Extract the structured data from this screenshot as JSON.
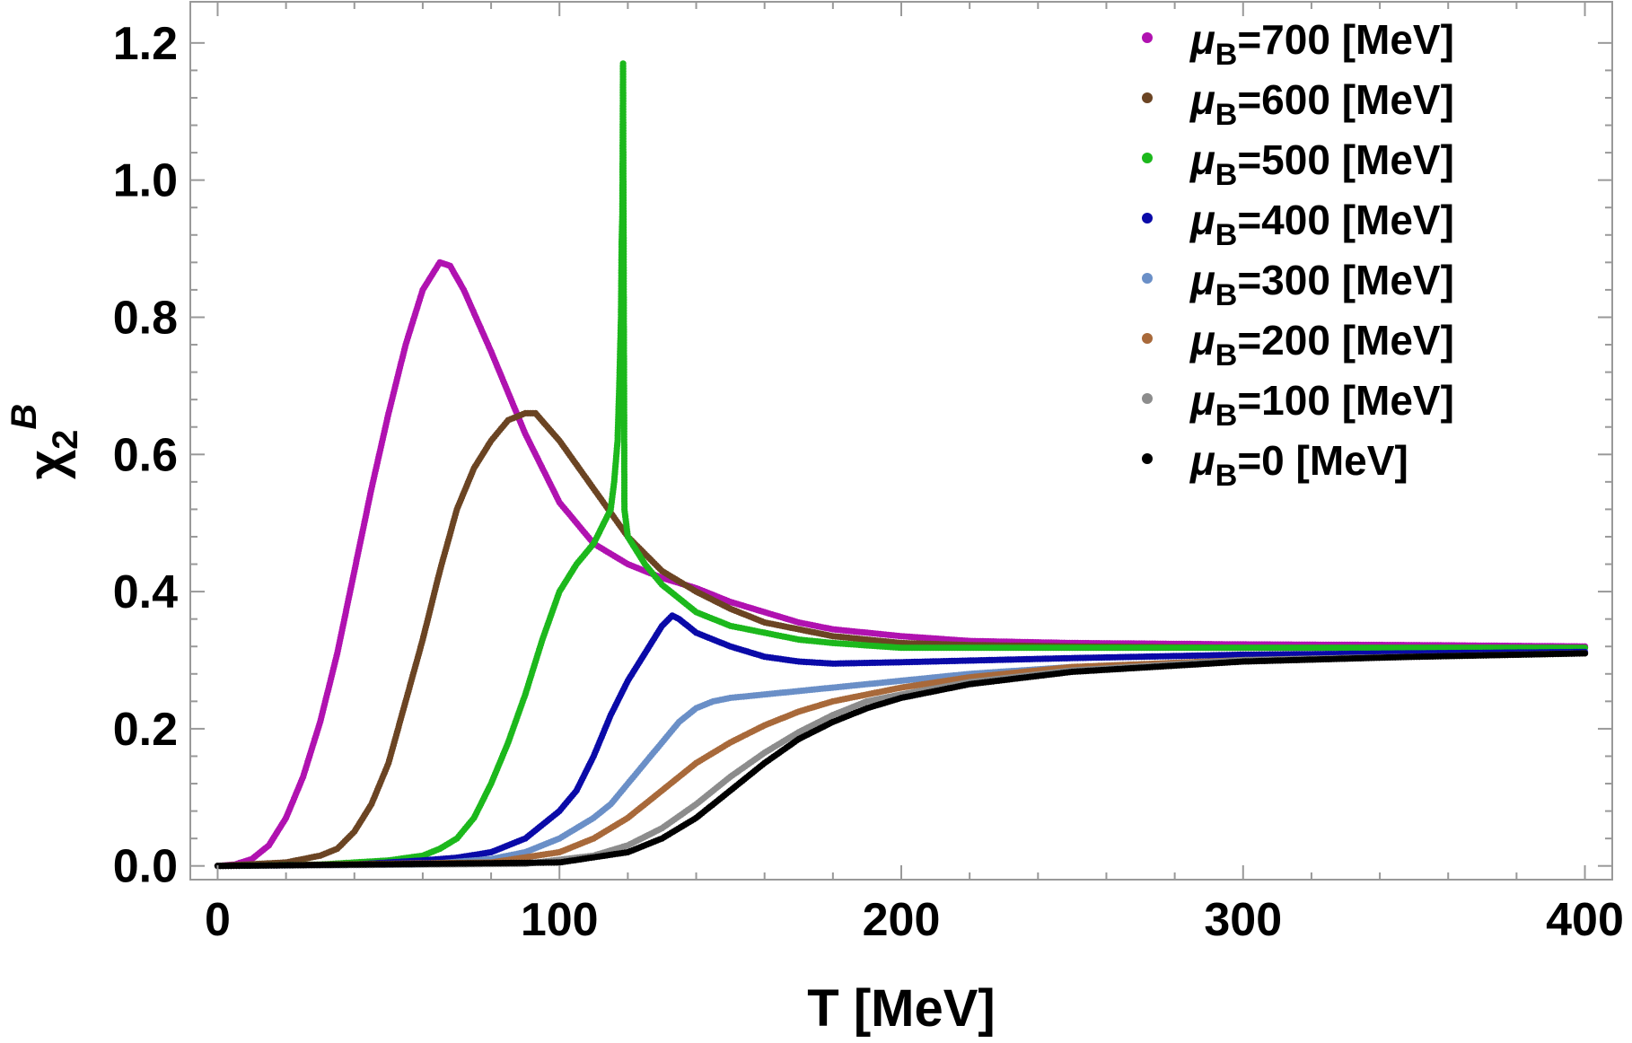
{
  "chart_data": {
    "type": "scatter",
    "xlabel": "T [MeV]",
    "ylabel": {
      "main": "χ",
      "sub": "2",
      "sup": "B"
    },
    "xlim": [
      -8,
      408
    ],
    "ylim": [
      -0.02,
      1.26
    ],
    "xticks": [
      0,
      100,
      200,
      300,
      400
    ],
    "yticks": [
      0.0,
      0.2,
      0.4,
      0.6,
      0.8,
      1.0,
      1.2
    ],
    "ytick_labels": [
      "0.0",
      "0.2",
      "0.4",
      "0.6",
      "0.8",
      "1.0",
      "1.2"
    ],
    "grid": false,
    "legend_position": "top-right",
    "series": [
      {
        "name": "μB=700 [MeV]",
        "name_main": "μ",
        "name_sub": "B",
        "name_rest": "=700 [MeV]",
        "color": "#b012b0",
        "points": [
          [
            0,
            0
          ],
          [
            5,
            0.002
          ],
          [
            10,
            0.01
          ],
          [
            15,
            0.03
          ],
          [
            20,
            0.07
          ],
          [
            25,
            0.13
          ],
          [
            30,
            0.21
          ],
          [
            35,
            0.31
          ],
          [
            40,
            0.43
          ],
          [
            45,
            0.55
          ],
          [
            50,
            0.66
          ],
          [
            55,
            0.76
          ],
          [
            60,
            0.84
          ],
          [
            65,
            0.88
          ],
          [
            68,
            0.875
          ],
          [
            72,
            0.84
          ],
          [
            80,
            0.75
          ],
          [
            90,
            0.63
          ],
          [
            100,
            0.53
          ],
          [
            110,
            0.47
          ],
          [
            120,
            0.44
          ],
          [
            130,
            0.42
          ],
          [
            140,
            0.405
          ],
          [
            150,
            0.385
          ],
          [
            160,
            0.37
          ],
          [
            170,
            0.355
          ],
          [
            180,
            0.345
          ],
          [
            200,
            0.335
          ],
          [
            220,
            0.328
          ],
          [
            250,
            0.325
          ],
          [
            300,
            0.323
          ],
          [
            350,
            0.322
          ],
          [
            400,
            0.32
          ]
        ]
      },
      {
        "name": "μB=600 [MeV]",
        "name_main": "μ",
        "name_sub": "B",
        "name_rest": "=600 [MeV]",
        "color": "#6b4423",
        "points": [
          [
            0,
            0
          ],
          [
            20,
            0.005
          ],
          [
            30,
            0.015
          ],
          [
            35,
            0.025
          ],
          [
            40,
            0.05
          ],
          [
            45,
            0.09
          ],
          [
            50,
            0.15
          ],
          [
            55,
            0.24
          ],
          [
            60,
            0.33
          ],
          [
            65,
            0.43
          ],
          [
            70,
            0.52
          ],
          [
            75,
            0.58
          ],
          [
            80,
            0.62
          ],
          [
            85,
            0.65
          ],
          [
            90,
            0.66
          ],
          [
            93,
            0.66
          ],
          [
            100,
            0.62
          ],
          [
            110,
            0.55
          ],
          [
            120,
            0.48
          ],
          [
            130,
            0.43
          ],
          [
            140,
            0.4
          ],
          [
            150,
            0.375
          ],
          [
            160,
            0.355
          ],
          [
            170,
            0.345
          ],
          [
            180,
            0.335
          ],
          [
            200,
            0.325
          ],
          [
            220,
            0.322
          ],
          [
            250,
            0.32
          ],
          [
            300,
            0.318
          ],
          [
            350,
            0.318
          ],
          [
            400,
            0.318
          ]
        ]
      },
      {
        "name": "μB=500 [MeV]",
        "name_main": "μ",
        "name_sub": "B",
        "name_rest": "=500 [MeV]",
        "color": "#1cb81c",
        "points": [
          [
            0,
            0
          ],
          [
            30,
            0.002
          ],
          [
            50,
            0.008
          ],
          [
            60,
            0.015
          ],
          [
            65,
            0.025
          ],
          [
            70,
            0.04
          ],
          [
            75,
            0.07
          ],
          [
            80,
            0.12
          ],
          [
            85,
            0.18
          ],
          [
            90,
            0.25
          ],
          [
            95,
            0.33
          ],
          [
            100,
            0.4
          ],
          [
            105,
            0.44
          ],
          [
            110,
            0.47
          ],
          [
            115,
            0.52
          ],
          [
            116,
            0.56
          ],
          [
            117,
            0.62
          ],
          [
            117.5,
            0.7
          ],
          [
            118,
            0.8
          ],
          [
            118.2,
            0.91
          ],
          [
            118.4,
            0.95
          ],
          [
            118.6,
            1.17
          ],
          [
            119,
            0.52
          ],
          [
            120,
            0.48
          ],
          [
            125,
            0.44
          ],
          [
            130,
            0.41
          ],
          [
            140,
            0.37
          ],
          [
            150,
            0.35
          ],
          [
            160,
            0.34
          ],
          [
            170,
            0.33
          ],
          [
            180,
            0.325
          ],
          [
            200,
            0.318
          ],
          [
            250,
            0.318
          ],
          [
            300,
            0.318
          ],
          [
            400,
            0.318
          ]
        ]
      },
      {
        "name": "μB=400 [MeV]",
        "name_main": "μ",
        "name_sub": "B",
        "name_rest": "=400 [MeV]",
        "color": "#0a0aa8",
        "points": [
          [
            0,
            0
          ],
          [
            40,
            0.002
          ],
          [
            60,
            0.008
          ],
          [
            70,
            0.012
          ],
          [
            80,
            0.02
          ],
          [
            90,
            0.04
          ],
          [
            100,
            0.08
          ],
          [
            105,
            0.11
          ],
          [
            110,
            0.16
          ],
          [
            115,
            0.22
          ],
          [
            120,
            0.27
          ],
          [
            125,
            0.31
          ],
          [
            130,
            0.35
          ],
          [
            133,
            0.365
          ],
          [
            135,
            0.36
          ],
          [
            140,
            0.34
          ],
          [
            150,
            0.32
          ],
          [
            160,
            0.305
          ],
          [
            170,
            0.298
          ],
          [
            180,
            0.295
          ],
          [
            200,
            0.297
          ],
          [
            250,
            0.303
          ],
          [
            300,
            0.308
          ],
          [
            350,
            0.31
          ],
          [
            400,
            0.312
          ]
        ]
      },
      {
        "name": "μB=300 [MeV]",
        "name_main": "μ",
        "name_sub": "B",
        "name_rest": "=300 [MeV]",
        "color": "#6a8fc7",
        "points": [
          [
            0,
            0
          ],
          [
            60,
            0.002
          ],
          [
            80,
            0.01
          ],
          [
            90,
            0.02
          ],
          [
            100,
            0.04
          ],
          [
            110,
            0.07
          ],
          [
            115,
            0.09
          ],
          [
            120,
            0.12
          ],
          [
            125,
            0.15
          ],
          [
            130,
            0.18
          ],
          [
            135,
            0.21
          ],
          [
            140,
            0.23
          ],
          [
            145,
            0.24
          ],
          [
            150,
            0.245
          ],
          [
            170,
            0.255
          ],
          [
            190,
            0.265
          ],
          [
            200,
            0.27
          ],
          [
            220,
            0.28
          ],
          [
            250,
            0.29
          ],
          [
            300,
            0.3
          ],
          [
            350,
            0.305
          ],
          [
            400,
            0.31
          ]
        ]
      },
      {
        "name": "μB=200 [MeV]",
        "name_main": "μ",
        "name_sub": "B",
        "name_rest": "=200 [MeV]",
        "color": "#a8693a",
        "points": [
          [
            0,
            0
          ],
          [
            80,
            0.005
          ],
          [
            100,
            0.02
          ],
          [
            110,
            0.04
          ],
          [
            120,
            0.07
          ],
          [
            130,
            0.11
          ],
          [
            140,
            0.15
          ],
          [
            150,
            0.18
          ],
          [
            160,
            0.205
          ],
          [
            170,
            0.225
          ],
          [
            180,
            0.24
          ],
          [
            200,
            0.26
          ],
          [
            220,
            0.275
          ],
          [
            250,
            0.29
          ],
          [
            300,
            0.3
          ],
          [
            350,
            0.305
          ],
          [
            400,
            0.31
          ]
        ]
      },
      {
        "name": "μB=100 [MeV]",
        "name_main": "μ",
        "name_sub": "B",
        "name_rest": "=100 [MeV]",
        "color": "#8c8c8c",
        "points": [
          [
            0,
            0
          ],
          [
            90,
            0.003
          ],
          [
            110,
            0.015
          ],
          [
            120,
            0.03
          ],
          [
            130,
            0.055
          ],
          [
            140,
            0.09
          ],
          [
            150,
            0.13
          ],
          [
            160,
            0.165
          ],
          [
            170,
            0.195
          ],
          [
            180,
            0.22
          ],
          [
            190,
            0.24
          ],
          [
            200,
            0.25
          ],
          [
            220,
            0.268
          ],
          [
            250,
            0.285
          ],
          [
            300,
            0.3
          ],
          [
            350,
            0.305
          ],
          [
            400,
            0.31
          ]
        ]
      },
      {
        "name": "μB=0 [MeV]",
        "name_main": "μ",
        "name_sub": "B",
        "name_rest": "=0 [MeV]",
        "color": "#000000",
        "points": [
          [
            0,
            0
          ],
          [
            100,
            0.005
          ],
          [
            120,
            0.02
          ],
          [
            130,
            0.04
          ],
          [
            140,
            0.07
          ],
          [
            150,
            0.11
          ],
          [
            160,
            0.15
          ],
          [
            170,
            0.185
          ],
          [
            180,
            0.21
          ],
          [
            190,
            0.23
          ],
          [
            200,
            0.245
          ],
          [
            220,
            0.265
          ],
          [
            250,
            0.283
          ],
          [
            300,
            0.298
          ],
          [
            350,
            0.305
          ],
          [
            400,
            0.31
          ]
        ]
      }
    ]
  }
}
